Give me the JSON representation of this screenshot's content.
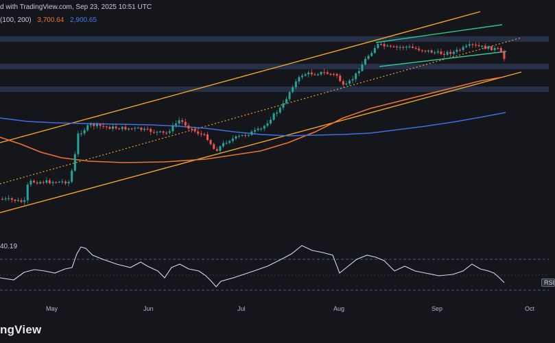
{
  "header": {
    "text": "d with TradingView.com, Sep 23, 2025 10:51 UTC",
    "ma_params": "(100, 200)",
    "ma_value_1": "3,700.64",
    "ma_value_2": "2,900.65"
  },
  "rsi": {
    "value_text": "40.19",
    "badge": "RSI"
  },
  "logo_text": "ngView",
  "colors": {
    "background": "#14161c",
    "candle_up": "#26a69a",
    "candle_down": "#ef5350",
    "ma_100": "#f0742d",
    "ma_200": "#3f6fe0",
    "channel": "#f5a623",
    "wedge": "#2ec78f",
    "zone": "#2b3a55",
    "rsi_line": "#d6dbe6"
  },
  "chart_data": {
    "type": "candlestick",
    "x_tick_labels": [
      "May",
      "Jun",
      "Jul",
      "Aug",
      "Sep",
      "Oct"
    ],
    "series": [
      {
        "name": "MA 100",
        "value_text": "3,700.64"
      },
      {
        "name": "MA 200",
        "value_text": "2,900.65"
      }
    ],
    "rsi_last": 40.19,
    "grid": false
  }
}
